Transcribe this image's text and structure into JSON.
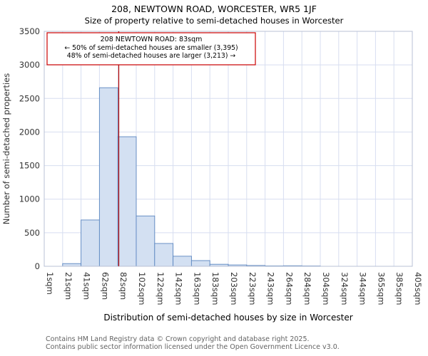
{
  "title": "208, NEWTOWN ROAD, WORCESTER, WR5 1JF",
  "subtitle": "Size of property relative to semi-detached houses in Worcester",
  "footer": {
    "line1": "Contains HM Land Registry data © Crown copyright and database right 2025.",
    "line2": "Contains public sector information licensed under the Open Government Licence v3.0."
  },
  "chart_data": {
    "type": "bar",
    "title": "208, NEWTOWN ROAD, WORCESTER, WR5 1JF",
    "subtitle": "Size of property relative to semi-detached houses in Worcester",
    "xlabel": "Distribution of semi-detached houses by size in Worcester",
    "ylabel": "Number of semi-detached properties",
    "ylim": [
      0,
      3500
    ],
    "ytick_step": 500,
    "grid": true,
    "categories": [
      "1sqm",
      "21sqm",
      "41sqm",
      "62sqm",
      "82sqm",
      "102sqm",
      "122sqm",
      "142sqm",
      "163sqm",
      "183sqm",
      "203sqm",
      "223sqm",
      "243sqm",
      "264sqm",
      "284sqm",
      "304sqm",
      "324sqm",
      "344sqm",
      "365sqm",
      "385sqm",
      "405sqm"
    ],
    "bin_edges_sqm": [
      1,
      21,
      41,
      62,
      82,
      102,
      122,
      142,
      163,
      183,
      203,
      223,
      243,
      264,
      284,
      304,
      324,
      344,
      365,
      385,
      405
    ],
    "values": [
      0,
      40,
      690,
      2660,
      1930,
      750,
      340,
      150,
      85,
      30,
      20,
      12,
      6,
      8,
      5,
      0,
      0,
      0,
      0,
      0
    ],
    "marker_sqm": 83,
    "annotation": {
      "line1": "208 NEWTOWN ROAD: 83sqm",
      "line2": "← 50% of semi-detached houses are smaller (3,395)",
      "line3": "48% of semi-detached houses are larger (3,213) →"
    },
    "colors": {
      "bar_fill": "#d3e0f2",
      "bar_stroke": "#5b86c0",
      "marker": "#b00000",
      "annotation_border": "#cc0000",
      "grid": "#d7def0",
      "frame": "#b9c1d4",
      "text": "#333333"
    }
  }
}
